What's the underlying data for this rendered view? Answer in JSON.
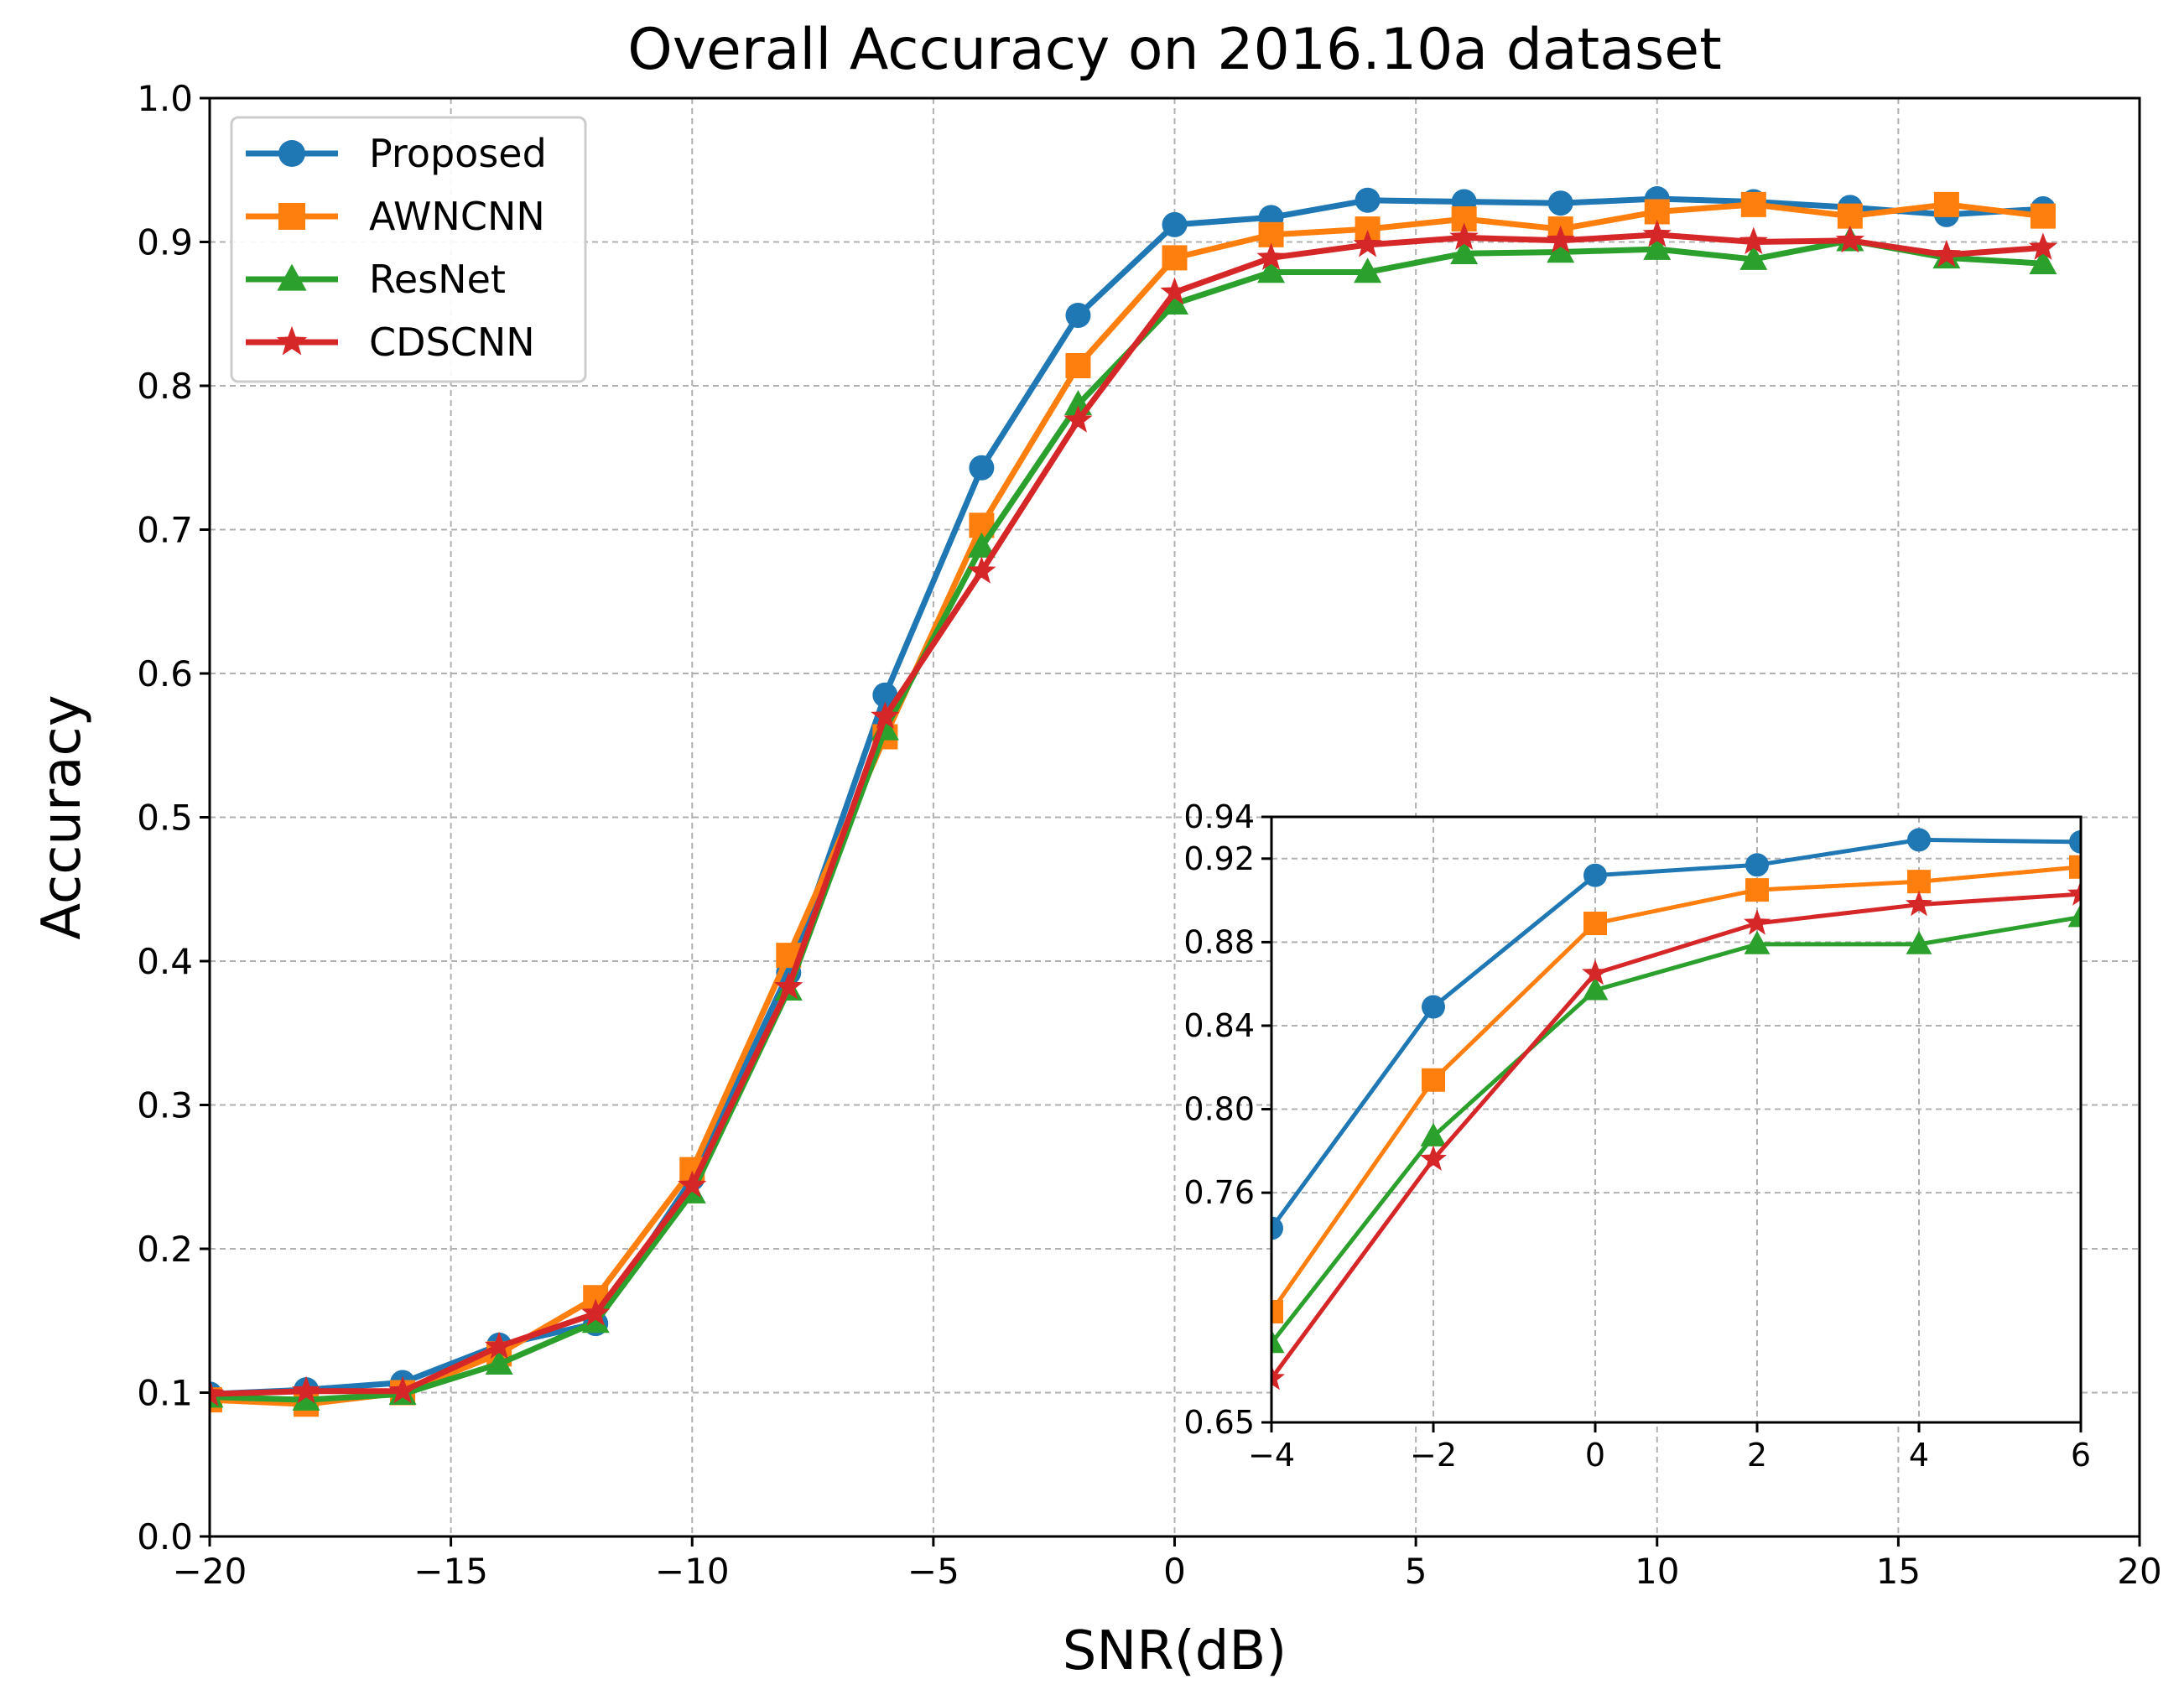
{
  "chart_data": [
    {
      "type": "line",
      "title": "Overall Accuracy on 2016.10a dataset",
      "xlabel": "SNR(dB)",
      "ylabel": "Accuracy",
      "xlim": [
        -20,
        20
      ],
      "ylim": [
        0.0,
        1.0
      ],
      "xticks": [
        -20,
        -15,
        -10,
        -5,
        0,
        5,
        10,
        15,
        20
      ],
      "xtick_labels": [
        "−20",
        "−15",
        "−10",
        "−5",
        "0",
        "5",
        "10",
        "15",
        "20"
      ],
      "yticks": [
        0.0,
        0.1,
        0.2,
        0.3,
        0.4,
        0.5,
        0.6,
        0.7,
        0.8,
        0.9,
        1.0
      ],
      "ytick_labels": [
        "0.0",
        "0.1",
        "0.2",
        "0.3",
        "0.4",
        "0.5",
        "0.6",
        "0.7",
        "0.8",
        "0.9",
        "1.0"
      ],
      "grid": true,
      "legend_position": "top-left",
      "x": [
        -20,
        -18,
        -16,
        -14,
        -12,
        -10,
        -8,
        -6,
        -4,
        -2,
        0,
        2,
        4,
        6,
        8,
        10,
        12,
        14,
        16,
        18
      ],
      "series": [
        {
          "name": "Proposed",
          "color": "#1f77b4",
          "marker": "circle",
          "values": [
            0.099,
            0.102,
            0.107,
            0.133,
            0.148,
            0.249,
            0.392,
            0.585,
            0.743,
            0.849,
            0.912,
            0.917,
            0.929,
            0.928,
            0.927,
            0.93,
            0.928,
            0.924,
            0.919,
            0.923
          ]
        },
        {
          "name": "AWNCNN",
          "color": "#ff7f0e",
          "marker": "square",
          "values": [
            0.095,
            0.092,
            0.1,
            0.127,
            0.166,
            0.255,
            0.404,
            0.556,
            0.703,
            0.814,
            0.889,
            0.905,
            0.909,
            0.916,
            0.909,
            0.921,
            0.926,
            0.918,
            0.926,
            0.918
          ]
        },
        {
          "name": "ResNet",
          "color": "#2ca02c",
          "marker": "triangle",
          "values": [
            0.097,
            0.095,
            0.099,
            0.12,
            0.149,
            0.239,
            0.38,
            0.561,
            0.688,
            0.787,
            0.857,
            0.879,
            0.879,
            0.892,
            0.893,
            0.895,
            0.888,
            0.901,
            0.889,
            0.885
          ]
        },
        {
          "name": "CDSCNN",
          "color": "#d62728",
          "marker": "star",
          "values": [
            0.099,
            0.101,
            0.101,
            0.132,
            0.155,
            0.244,
            0.382,
            0.57,
            0.671,
            0.776,
            0.865,
            0.889,
            0.898,
            0.903,
            0.901,
            0.905,
            0.9,
            0.901,
            0.891,
            0.896
          ]
        }
      ]
    },
    {
      "type": "line",
      "title": "",
      "xlabel": "",
      "ylabel": "",
      "xlim": [
        -4,
        6
      ],
      "ylim": [
        0.65,
        0.94
      ],
      "xticks": [
        -4,
        -2,
        0,
        2,
        4,
        6
      ],
      "xtick_labels": [
        "−4",
        "−2",
        "0",
        "2",
        "4",
        "6"
      ],
      "yticks": [
        0.65,
        0.76,
        0.8,
        0.84,
        0.88,
        0.92,
        0.94
      ],
      "ytick_labels": [
        "0.65",
        "0.76",
        "0.80",
        "0.84",
        "0.88",
        "0.92",
        "0.94"
      ],
      "grid": true,
      "legend_position": "none",
      "x": [
        -4,
        -2,
        0,
        2,
        4,
        6
      ],
      "series": [
        {
          "name": "Proposed",
          "color": "#1f77b4",
          "marker": "circle",
          "values": [
            0.743,
            0.849,
            0.912,
            0.917,
            0.929,
            0.928
          ]
        },
        {
          "name": "AWNCNN",
          "color": "#ff7f0e",
          "marker": "square",
          "values": [
            0.703,
            0.814,
            0.889,
            0.905,
            0.909,
            0.916
          ]
        },
        {
          "name": "ResNet",
          "color": "#2ca02c",
          "marker": "triangle",
          "values": [
            0.688,
            0.787,
            0.857,
            0.879,
            0.879,
            0.892
          ]
        },
        {
          "name": "CDSCNN",
          "color": "#d62728",
          "marker": "star",
          "values": [
            0.671,
            0.776,
            0.865,
            0.889,
            0.898,
            0.903
          ]
        }
      ]
    }
  ]
}
